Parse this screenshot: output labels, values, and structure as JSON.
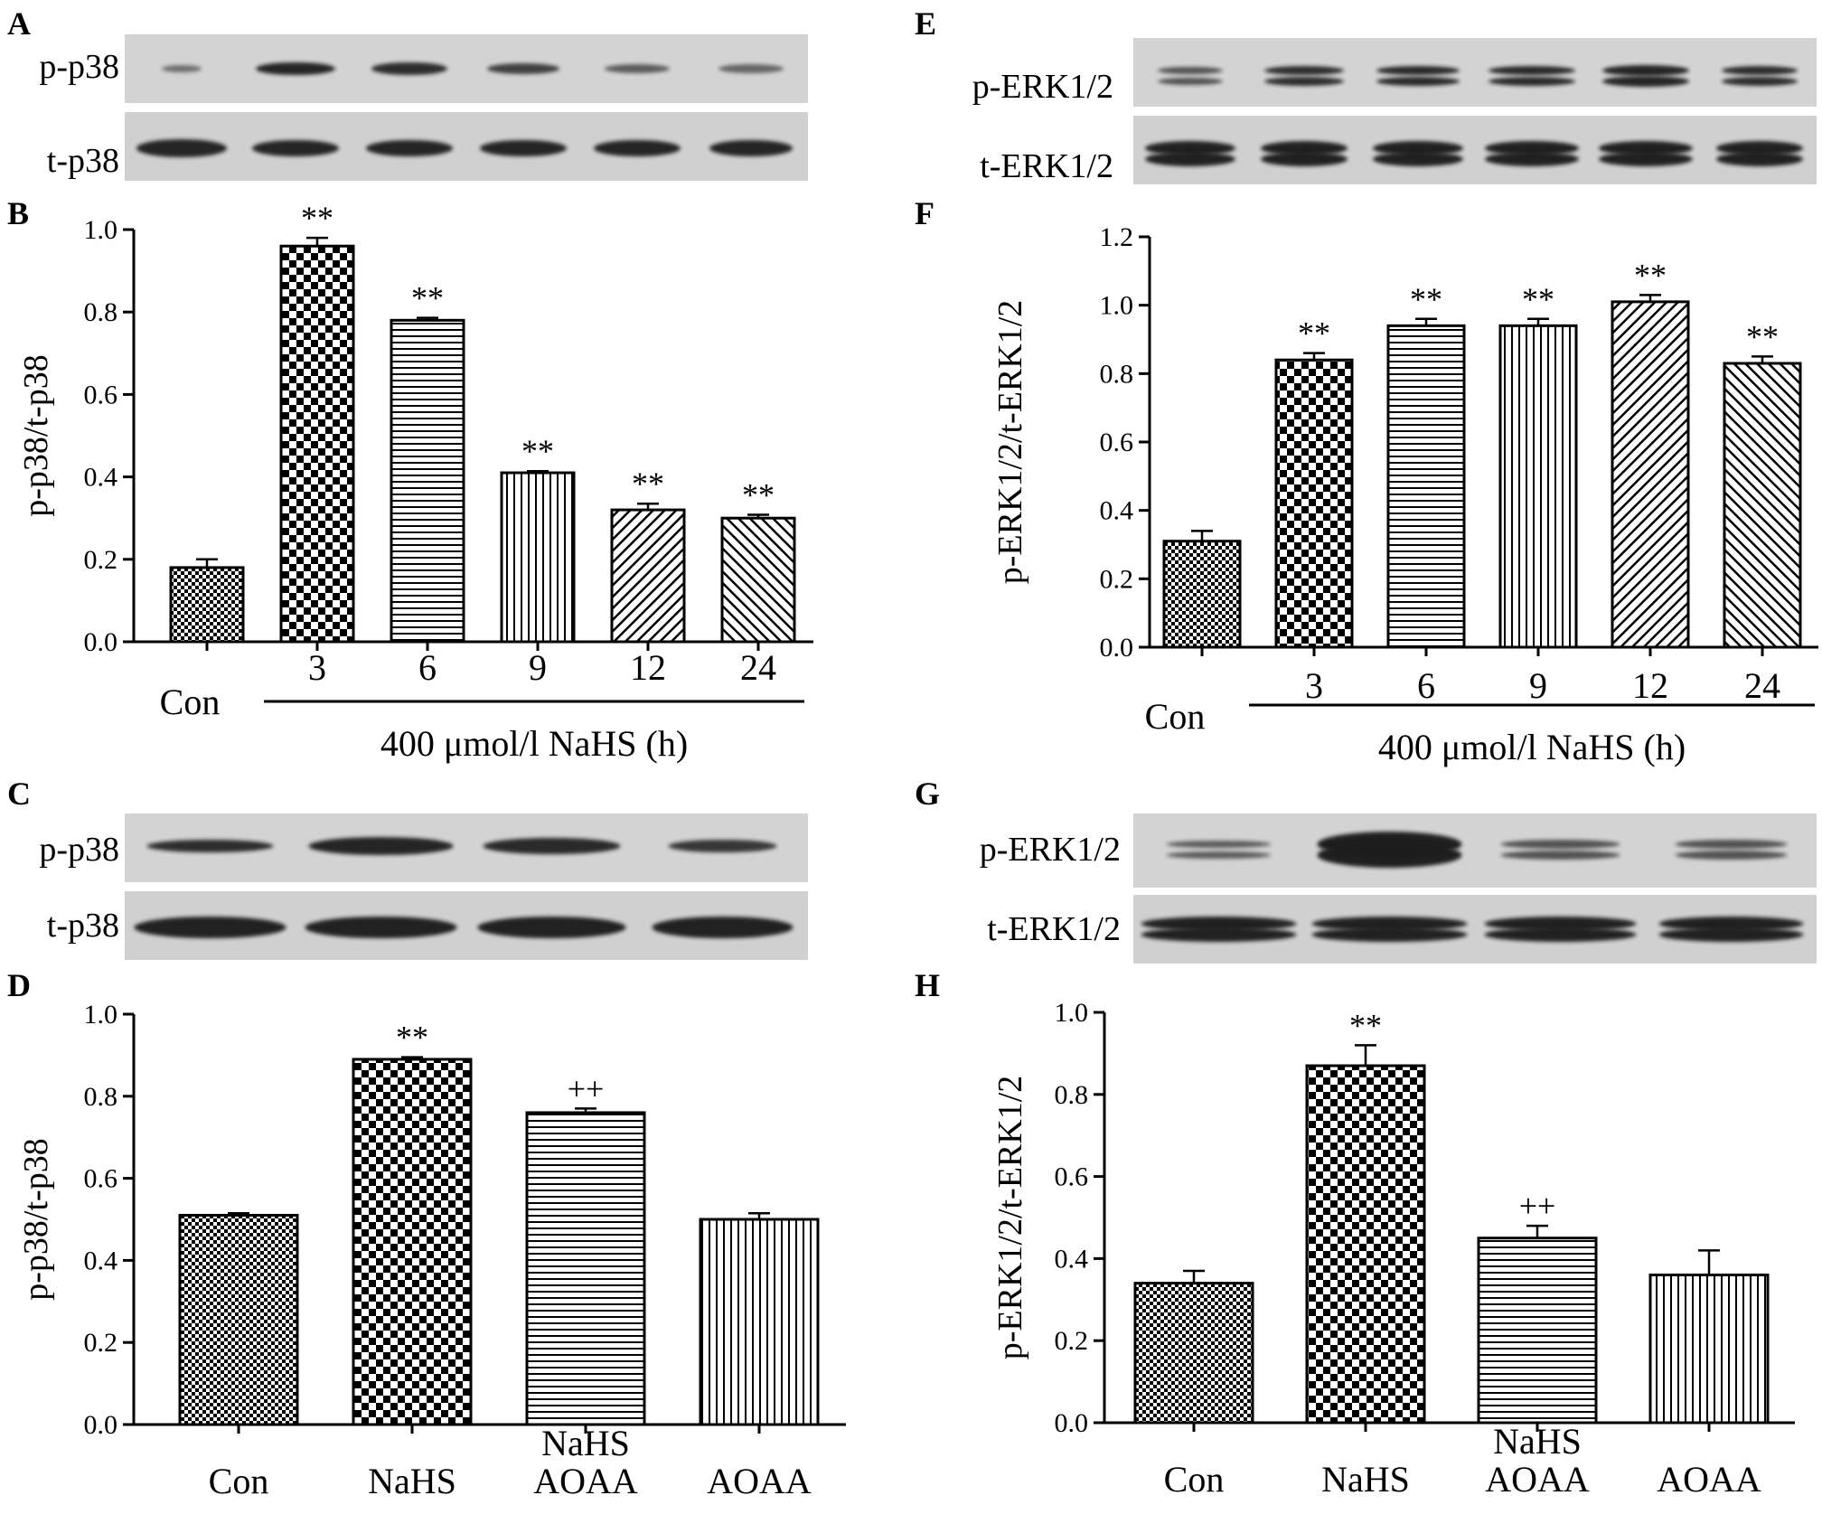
{
  "figure": {
    "panels": [
      {
        "id": "A",
        "type": "blot",
        "label": "A",
        "rows": [
          "p-p38",
          "t-p38"
        ],
        "lanes": 6
      },
      {
        "id": "B",
        "type": "chart",
        "label": "B"
      },
      {
        "id": "C",
        "type": "blot",
        "label": "C",
        "rows": [
          "p-p38",
          "t-p38"
        ],
        "lanes": 4
      },
      {
        "id": "D",
        "type": "chart",
        "label": "D"
      },
      {
        "id": "E",
        "type": "blot",
        "label": "E",
        "rows": [
          "p-ERK1/2",
          "t-ERK1/2"
        ],
        "lanes": 6
      },
      {
        "id": "F",
        "type": "chart",
        "label": "F"
      },
      {
        "id": "G",
        "type": "blot",
        "label": "G",
        "rows": [
          "p-ERK1/2",
          "t-ERK1/2"
        ],
        "lanes": 4
      },
      {
        "id": "H",
        "type": "chart",
        "label": "H"
      }
    ]
  },
  "colors": {
    "ink": "#000000",
    "blot_bg": "#d3d3d3",
    "band": "#1f1f1f"
  },
  "chart_data": [
    {
      "panel": "B",
      "type": "bar",
      "categories": [
        "Con",
        "3",
        "6",
        "9",
        "12",
        "24"
      ],
      "values": [
        0.18,
        0.96,
        0.78,
        0.41,
        0.32,
        0.3
      ],
      "errors": [
        0.02,
        0.02,
        0.006,
        0.004,
        0.015,
        0.008
      ],
      "annotations": [
        "",
        "**",
        "**",
        "**",
        "**",
        "**"
      ],
      "patterns": [
        "fine-check",
        "checker",
        "hlines",
        "vlines",
        "diag-right",
        "diag-left"
      ],
      "ylabel": "p-p38/t-p38",
      "ylim": [
        0,
        1.0
      ],
      "yticks": [
        "0.0",
        "0.2",
        "0.4",
        "0.6",
        "0.8",
        "1.0"
      ],
      "group_label": "400 μmol/l NaHS (h)"
    },
    {
      "panel": "D",
      "type": "bar",
      "categories": [
        "Con",
        "NaHS",
        "NaHS\nAOAA",
        "AOAA"
      ],
      "values": [
        0.51,
        0.89,
        0.76,
        0.5
      ],
      "errors": [
        0.005,
        0.005,
        0.01,
        0.015
      ],
      "annotations": [
        "",
        "**",
        "++",
        ""
      ],
      "patterns": [
        "fine-check",
        "checker",
        "hlines",
        "vlines"
      ],
      "ylabel": "p-p38/t-p38",
      "ylim": [
        0,
        1.0
      ],
      "yticks": [
        "0.0",
        "0.2",
        "0.4",
        "0.6",
        "0.8",
        "1.0"
      ]
    },
    {
      "panel": "F",
      "type": "bar",
      "categories": [
        "Con",
        "3",
        "6",
        "9",
        "12",
        "24"
      ],
      "values": [
        0.31,
        0.84,
        0.94,
        0.94,
        1.01,
        0.83
      ],
      "errors": [
        0.03,
        0.02,
        0.02,
        0.02,
        0.02,
        0.02
      ],
      "annotations": [
        "",
        "**",
        "**",
        "**",
        "**",
        "**"
      ],
      "patterns": [
        "fine-check",
        "checker",
        "hlines",
        "vlines",
        "diag-right",
        "diag-left"
      ],
      "ylabel": "p-ERK1/2/t-ERK1/2",
      "ylim": [
        0,
        1.2
      ],
      "yticks": [
        "0.0",
        "0.2",
        "0.4",
        "0.6",
        "0.8",
        "1.0",
        "1.2"
      ],
      "group_label": "400 μmol/l NaHS (h)"
    },
    {
      "panel": "H",
      "type": "bar",
      "categories": [
        "Con",
        "NaHS",
        "NaHS\nAOAA",
        "AOAA"
      ],
      "values": [
        0.34,
        0.87,
        0.45,
        0.36
      ],
      "errors": [
        0.03,
        0.05,
        0.03,
        0.06
      ],
      "annotations": [
        "",
        "**",
        "++",
        ""
      ],
      "patterns": [
        "fine-check",
        "checker",
        "hlines",
        "vlines"
      ],
      "ylabel": "p-ERK1/2/t-ERK1/2",
      "ylim": [
        0,
        1.0
      ],
      "yticks": [
        "0.0",
        "0.2",
        "0.4",
        "0.6",
        "0.8",
        "1.0"
      ]
    }
  ]
}
